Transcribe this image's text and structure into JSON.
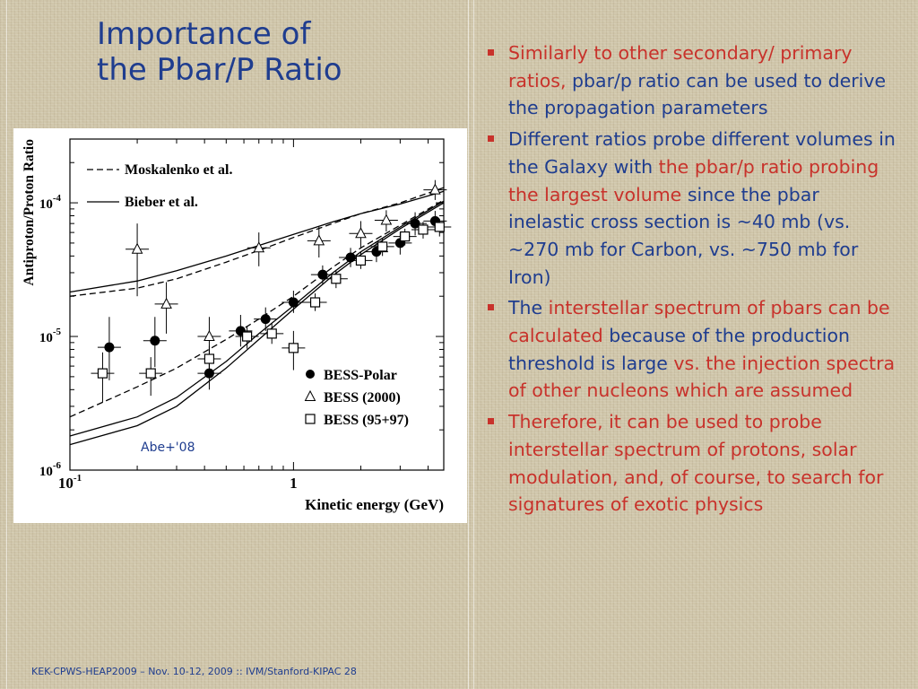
{
  "title": {
    "line1": "Importance of",
    "line2": "the Pbar/P Ratio"
  },
  "bullets": [
    {
      "segments": [
        {
          "text": "Similarly to other secondary/ primary ratios, ",
          "color": "red"
        },
        {
          "text": "pbar/p ratio can be used to derive the propagation parameters",
          "color": "blue"
        }
      ]
    },
    {
      "segments": [
        {
          "text": "Different ratios probe different volumes in the Galaxy with ",
          "color": "blue"
        },
        {
          "text": "the pbar/p ratio probing the largest volume ",
          "color": "red"
        },
        {
          "text": "since the pbar inelastic cross section is ~40 mb (vs. ~270 mb for Carbon, vs. ~750 mb for Iron)",
          "color": "blue"
        }
      ]
    },
    {
      "segments": [
        {
          "text": "The ",
          "color": "blue"
        },
        {
          "text": "interstellar spectrum of pbars can be calculated ",
          "color": "red"
        },
        {
          "text": "because of the production threshold is large ",
          "color": "blue"
        },
        {
          "text": "vs. the injection spectra of other nucleons which are assumed",
          "color": "red"
        }
      ]
    },
    {
      "segments": [
        {
          "text": "Therefore, it can be used to probe interstellar spectrum of protons, solar modulation, and, of course, to search for signatures of exotic physics",
          "color": "red"
        }
      ]
    }
  ],
  "colors": {
    "blue": "#1f3d8f",
    "red": "#c8322b",
    "background": "#cfc5a9"
  },
  "footer": "KEK-CPWS-HEAP2009 – Nov. 10-12, 2009 :: IVM/Stanford-KIPAC  28",
  "chart_data": {
    "type": "scatter",
    "title": "",
    "xlabel": "Kinetic energy (GeV)",
    "ylabel": "Antiproton/Proton Ratio",
    "xscale": "log",
    "yscale": "log",
    "xlim": [
      0.1,
      4.7
    ],
    "ylim": [
      1e-06,
      0.0003
    ],
    "x_ticks": [
      {
        "value": 0.1,
        "label": "10",
        "sup": "-1"
      },
      {
        "value": 1,
        "label": "1",
        "sup": ""
      }
    ],
    "y_ticks": [
      {
        "value": 1e-06,
        "label": "10",
        "sup": "-6"
      },
      {
        "value": 1e-05,
        "label": "10",
        "sup": "-5"
      },
      {
        "value": 0.0001,
        "label": "10",
        "sup": "-4"
      }
    ],
    "annotation": "Abe+'08",
    "legend_placement": "top-left and bottom-right",
    "legend": {
      "lines": [
        {
          "name": "Moskalenko et al.",
          "dash": true
        },
        {
          "name": "Bieber et al.",
          "dash": false
        }
      ],
      "markers": [
        {
          "name": "BESS-Polar",
          "marker": "filled-circle"
        },
        {
          "name": "BESS (2000)",
          "marker": "open-triangle"
        },
        {
          "name": "BESS (95+97)",
          "marker": "open-square"
        }
      ]
    },
    "series": [
      {
        "name": "BESS-Polar",
        "marker": "filled-circle",
        "points": [
          {
            "x": 0.15,
            "y": 8.3e-06,
            "ylo": 4.7e-06,
            "yhi": 1.4e-05
          },
          {
            "x": 0.24,
            "y": 9.3e-06,
            "ylo": 5.9e-06,
            "yhi": 1.4e-05
          },
          {
            "x": 0.42,
            "y": 5.3e-06,
            "ylo": 4e-06,
            "yhi": 7e-06
          },
          {
            "x": 0.58,
            "y": 1.1e-05,
            "ylo": 8.4e-06,
            "yhi": 1.45e-05
          },
          {
            "x": 0.75,
            "y": 1.35e-05,
            "ylo": 1.1e-05,
            "yhi": 1.65e-05
          },
          {
            "x": 1.0,
            "y": 1.8e-05,
            "ylo": 1.5e-05,
            "yhi": 2.2e-05
          },
          {
            "x": 1.35,
            "y": 2.9e-05,
            "ylo": 2.45e-05,
            "yhi": 3.4e-05
          },
          {
            "x": 1.8,
            "y": 3.9e-05,
            "ylo": 3.3e-05,
            "yhi": 4.6e-05
          },
          {
            "x": 2.35,
            "y": 4.3e-05,
            "ylo": 3.6e-05,
            "yhi": 5.1e-05
          },
          {
            "x": 3.0,
            "y": 5e-05,
            "ylo": 4.1e-05,
            "yhi": 6e-05
          },
          {
            "x": 3.5,
            "y": 7e-05,
            "ylo": 5.7e-05,
            "yhi": 8.5e-05
          },
          {
            "x": 4.3,
            "y": 7.3e-05,
            "ylo": 6.1e-05,
            "yhi": 8.7e-05
          }
        ]
      },
      {
        "name": "BESS (2000)",
        "marker": "open-triangle",
        "points": [
          {
            "x": 0.2,
            "y": 4.5e-05,
            "ylo": 2e-05,
            "yhi": 7e-05
          },
          {
            "x": 0.27,
            "y": 1.75e-05,
            "ylo": 1.05e-05,
            "yhi": 2.55e-05
          },
          {
            "x": 0.42,
            "y": 1e-05,
            "ylo": 5.8e-06,
            "yhi": 1.4e-05
          },
          {
            "x": 0.7,
            "y": 4.6e-05,
            "ylo": 3.35e-05,
            "yhi": 6e-05
          },
          {
            "x": 1.3,
            "y": 5.2e-05,
            "ylo": 3.9e-05,
            "yhi": 6.6e-05
          },
          {
            "x": 2.0,
            "y": 5.9e-05,
            "ylo": 4.6e-05,
            "yhi": 7.3e-05
          },
          {
            "x": 2.6,
            "y": 7.4e-05,
            "ylo": 6.1e-05,
            "yhi": 8.8e-05
          },
          {
            "x": 4.3,
            "y": 0.000125,
            "ylo": 0.000105,
            "yhi": 0.000148
          }
        ]
      },
      {
        "name": "BESS (95+97)",
        "marker": "open-square",
        "points": [
          {
            "x": 0.14,
            "y": 5.3e-06,
            "ylo": 3.2e-06,
            "yhi": 7.6e-06
          },
          {
            "x": 0.23,
            "y": 5.3e-06,
            "ylo": 3.6e-06,
            "yhi": 7e-06
          },
          {
            "x": 0.42,
            "y": 6.8e-06,
            "ylo": 5.1e-06,
            "yhi": 8.5e-06
          },
          {
            "x": 0.62,
            "y": 1e-05,
            "ylo": 8.1e-06,
            "yhi": 1.2e-05
          },
          {
            "x": 0.8,
            "y": 1.05e-05,
            "ylo": 8.8e-06,
            "yhi": 1.25e-05
          },
          {
            "x": 1.0,
            "y": 8.2e-06,
            "ylo": 5.6e-06,
            "yhi": 1.1e-05
          },
          {
            "x": 1.25,
            "y": 1.8e-05,
            "ylo": 1.55e-05,
            "yhi": 2.1e-05
          },
          {
            "x": 1.55,
            "y": 2.7e-05,
            "ylo": 2.3e-05,
            "yhi": 3.1e-05
          },
          {
            "x": 2.0,
            "y": 3.7e-05,
            "ylo": 3.2e-05,
            "yhi": 4.25e-05
          },
          {
            "x": 2.5,
            "y": 4.7e-05,
            "ylo": 4e-05,
            "yhi": 5.4e-05
          },
          {
            "x": 3.15,
            "y": 5.6e-05,
            "ylo": 4.8e-05,
            "yhi": 6.4e-05
          },
          {
            "x": 3.8,
            "y": 6.3e-05,
            "ylo": 5.4e-05,
            "yhi": 7.2e-05
          },
          {
            "x": 4.5,
            "y": 6.6e-05,
            "ylo": 5.6e-05,
            "yhi": 7.6e-05
          }
        ]
      }
    ],
    "curves": [
      {
        "name": "Moskalenko et al. (upper)",
        "dash": true,
        "x": [
          0.1,
          0.2,
          0.3,
          0.5,
          0.7,
          1.0,
          1.5,
          2.0,
          3.0,
          4.7
        ],
        "y": [
          2e-05,
          2.3e-05,
          2.7e-05,
          3.6e-05,
          4.4e-05,
          5.5e-05,
          7e-05,
          8.3e-05,
          0.0001,
          0.00013
        ]
      },
      {
        "name": "Bieber et al. (upper)",
        "dash": false,
        "x": [
          0.1,
          0.2,
          0.3,
          0.5,
          0.7,
          1.0,
          1.5,
          2.0,
          3.0,
          4.7
        ],
        "y": [
          2.15e-05,
          2.6e-05,
          3.1e-05,
          4e-05,
          4.8e-05,
          5.8e-05,
          7.2e-05,
          8.3e-05,
          9.8e-05,
          0.000122
        ]
      },
      {
        "name": "Moskalenko et al. (lower)",
        "dash": true,
        "x": [
          0.1,
          0.2,
          0.3,
          0.5,
          0.7,
          1.0,
          1.5,
          2.0,
          3.0,
          4.7
        ],
        "y": [
          2.5e-06,
          4.2e-06,
          5.8e-06,
          9.5e-06,
          1.35e-05,
          2e-05,
          3.3e-05,
          4.6e-05,
          6.8e-05,
          0.000105
        ]
      },
      {
        "name": "Bieber et al. (lower, a)",
        "dash": false,
        "x": [
          0.1,
          0.2,
          0.3,
          0.5,
          0.7,
          1.0,
          1.5,
          2.0,
          3.0,
          4.7
        ],
        "y": [
          1.8e-06,
          2.5e-06,
          3.5e-06,
          6.5e-06,
          1.05e-05,
          1.7e-05,
          3e-05,
          4.3e-05,
          6.6e-05,
          0.000103
        ]
      },
      {
        "name": "Bieber et al. (lower, b)",
        "dash": false,
        "x": [
          0.1,
          0.2,
          0.3,
          0.5,
          0.7,
          1.0,
          1.5,
          2.0,
          3.0,
          4.7
        ],
        "y": [
          1.55e-06,
          2.15e-06,
          3e-06,
          5.8e-06,
          9.5e-06,
          1.6e-05,
          2.85e-05,
          4.1e-05,
          6.4e-05,
          0.0001
        ]
      }
    ]
  }
}
